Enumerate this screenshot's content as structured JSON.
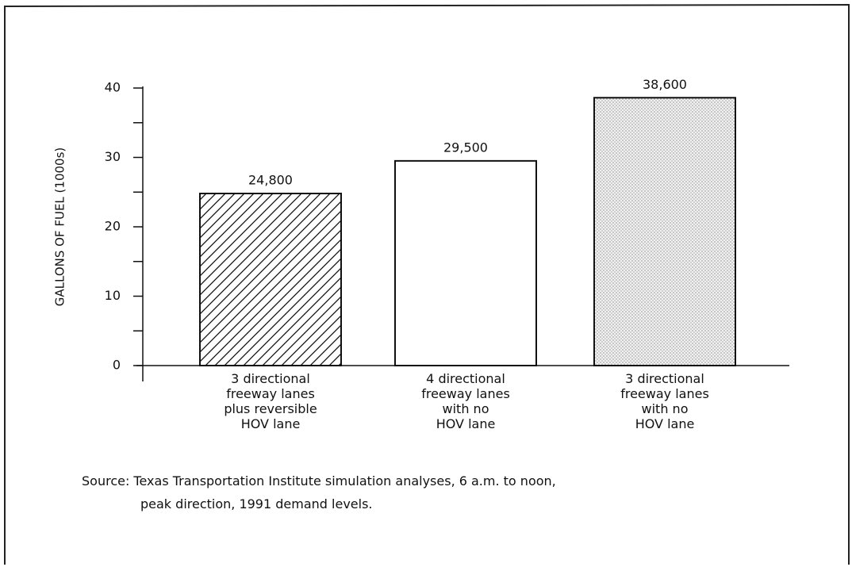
{
  "chart_data": {
    "type": "bar",
    "ylabel": "GALLONS OF FUEL (1000s)",
    "categories": [
      "3 directional\nfreeway lanes\nplus reversible\nHOV lane",
      "4 directional\nfreeway lanes\nwith no\nHOV lane",
      "3 directional\nfreeway lanes\nwith no\nHOV lane"
    ],
    "values": [
      24.8,
      29.5,
      38.6
    ],
    "value_labels": [
      "24,800",
      "29,500",
      "38,600"
    ],
    "patterns": [
      "hatch",
      "none",
      "dots"
    ],
    "color": "#111111",
    "ylim": [
      0,
      40
    ],
    "yticks": [
      0,
      10,
      20,
      30,
      40
    ],
    "minor_yticks": [
      5,
      15,
      25,
      35
    ],
    "grid": false,
    "source": "Source:  Texas Transportation Institute simulation analyses, 6 a.m. to noon,\npeak direction, 1991 demand levels."
  }
}
